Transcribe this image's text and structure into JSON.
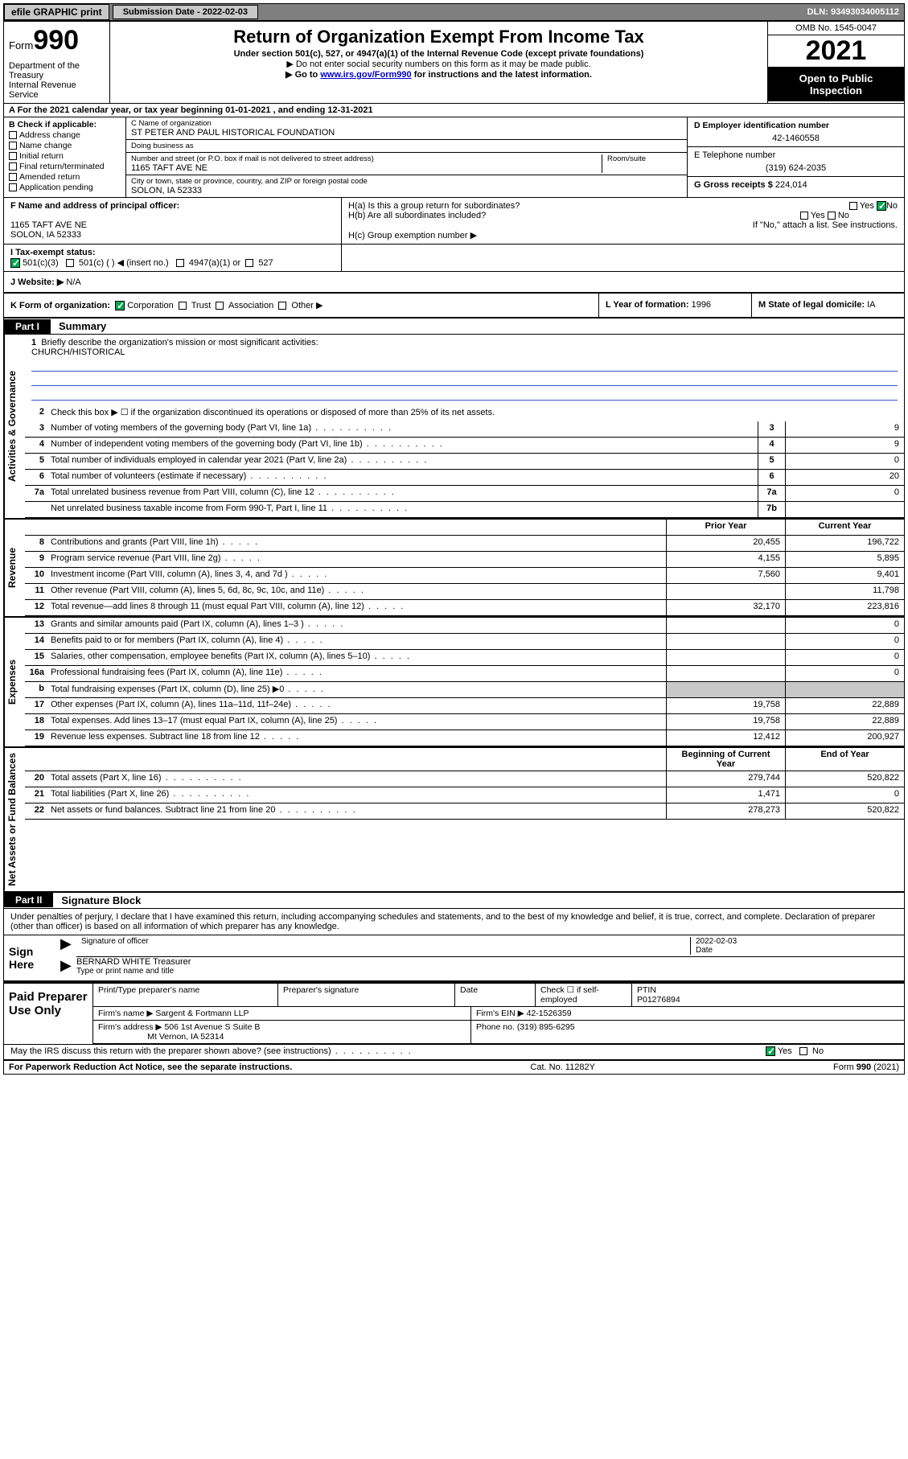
{
  "toolbar": {
    "efile_label": "efile GRAPHIC print",
    "submission_label": "Submission Date - 2022-02-03",
    "dln": "DLN: 93493034005112"
  },
  "header": {
    "form_word": "Form",
    "form_number": "990",
    "title": "Return of Organization Exempt From Income Tax",
    "subtitle": "Under section 501(c), 527, or 4947(a)(1) of the Internal Revenue Code (except private foundations)",
    "instr1": "▶ Do not enter social security numbers on this form as it may be made public.",
    "instr2_pre": "▶ Go to ",
    "instr2_link": "www.irs.gov/Form990",
    "instr2_post": " for instructions and the latest information.",
    "dept1": "Department of the Treasury",
    "dept2": "Internal Revenue Service",
    "omb": "OMB No. 1545-0047",
    "year": "2021",
    "open_pub1": "Open to Public",
    "open_pub2": "Inspection"
  },
  "row_a": "A For the 2021 calendar year, or tax year beginning 01-01-2021   , and ending 12-31-2021",
  "section_b": {
    "label": "B Check if applicable:",
    "items": [
      "Address change",
      "Name change",
      "Initial return",
      "Final return/terminated",
      "Amended return",
      "Application pending"
    ]
  },
  "section_c": {
    "name_label": "C Name of organization",
    "name": "ST PETER AND PAUL HISTORICAL FOUNDATION",
    "dba_label": "Doing business as",
    "dba": "",
    "addr_label": "Number and street (or P.O. box if mail is not delivered to street address)",
    "room_label": "Room/suite",
    "addr": "1165 TAFT AVE NE",
    "city_label": "City or town, state or province, country, and ZIP or foreign postal code",
    "city": "SOLON, IA  52333"
  },
  "section_d": {
    "ein_label": "D Employer identification number",
    "ein": "42-1460558",
    "phone_label": "E Telephone number",
    "phone": "(319) 624-2035",
    "gross_label": "G Gross receipts $",
    "gross": "224,014"
  },
  "section_f": {
    "label": "F  Name and address of principal officer:",
    "line1": "",
    "line2": "1165 TAFT AVE NE",
    "line3": "SOLON, IA  52333"
  },
  "section_h": {
    "ha": "H(a)  Is this a group return for subordinates?",
    "ha_yes": "Yes",
    "ha_no": "No",
    "hb": "H(b)  Are all subordinates included?",
    "hb_yes": "Yes",
    "hb_no": "No",
    "hb_note": "If \"No,\" attach a list. See instructions.",
    "hc": "H(c)  Group exemption number ▶"
  },
  "row_i": {
    "label": "I   Tax-exempt status:",
    "opt1": "501(c)(3)",
    "opt2": "501(c) (  ) ◀ (insert no.)",
    "opt3": "4947(a)(1) or",
    "opt4": "527"
  },
  "row_j": {
    "label": "J   Website: ▶",
    "val": "N/A"
  },
  "row_k": {
    "label": "K Form of organization:",
    "opts": [
      "Corporation",
      "Trust",
      "Association",
      "Other ▶"
    ],
    "l_label": "L Year of formation:",
    "l_val": "1996",
    "m_label": "M State of legal domicile:",
    "m_val": "IA"
  },
  "part1": {
    "tag": "Part I",
    "title": "Summary",
    "side_ag": "Activities & Governance",
    "side_rev": "Revenue",
    "side_exp": "Expenses",
    "side_net": "Net Assets or Fund Balances",
    "mission_label": "Briefly describe the organization's mission or most significant activities:",
    "mission": "CHURCH/HISTORICAL",
    "line2": "Check this box ▶ ☐  if the organization discontinued its operations or disposed of more than 25% of its net assets.",
    "col_py": "Prior Year",
    "col_cy": "Current Year",
    "col_beg": "Beginning of Current Year",
    "col_end": "End of Year",
    "rows_ag": [
      {
        "n": "3",
        "d": "Number of voting members of the governing body (Part VI, line 1a)",
        "b": "3",
        "v": "9"
      },
      {
        "n": "4",
        "d": "Number of independent voting members of the governing body (Part VI, line 1b)",
        "b": "4",
        "v": "9"
      },
      {
        "n": "5",
        "d": "Total number of individuals employed in calendar year 2021 (Part V, line 2a)",
        "b": "5",
        "v": "0"
      },
      {
        "n": "6",
        "d": "Total number of volunteers (estimate if necessary)",
        "b": "6",
        "v": "20"
      },
      {
        "n": "7a",
        "d": "Total unrelated business revenue from Part VIII, column (C), line 12",
        "b": "7a",
        "v": "0"
      },
      {
        "n": "",
        "d": "Net unrelated business taxable income from Form 990-T, Part I, line 11",
        "b": "7b",
        "v": ""
      }
    ],
    "rows_rev": [
      {
        "n": "8",
        "d": "Contributions and grants (Part VIII, line 1h)",
        "py": "20,455",
        "cy": "196,722"
      },
      {
        "n": "9",
        "d": "Program service revenue (Part VIII, line 2g)",
        "py": "4,155",
        "cy": "5,895"
      },
      {
        "n": "10",
        "d": "Investment income (Part VIII, column (A), lines 3, 4, and 7d )",
        "py": "7,560",
        "cy": "9,401"
      },
      {
        "n": "11",
        "d": "Other revenue (Part VIII, column (A), lines 5, 6d, 8c, 9c, 10c, and 11e)",
        "py": "",
        "cy": "11,798"
      },
      {
        "n": "12",
        "d": "Total revenue—add lines 8 through 11 (must equal Part VIII, column (A), line 12)",
        "py": "32,170",
        "cy": "223,816"
      }
    ],
    "rows_exp": [
      {
        "n": "13",
        "d": "Grants and similar amounts paid (Part IX, column (A), lines 1–3 )",
        "py": "",
        "cy": "0"
      },
      {
        "n": "14",
        "d": "Benefits paid to or for members (Part IX, column (A), line 4)",
        "py": "",
        "cy": "0"
      },
      {
        "n": "15",
        "d": "Salaries, other compensation, employee benefits (Part IX, column (A), lines 5–10)",
        "py": "",
        "cy": "0"
      },
      {
        "n": "16a",
        "d": "Professional fundraising fees (Part IX, column (A), line 11e)",
        "py": "",
        "cy": "0"
      },
      {
        "n": "b",
        "d": "Total fundraising expenses (Part IX, column (D), line 25) ▶0",
        "py": "shade",
        "cy": "shade"
      },
      {
        "n": "17",
        "d": "Other expenses (Part IX, column (A), lines 11a–11d, 11f–24e)",
        "py": "19,758",
        "cy": "22,889"
      },
      {
        "n": "18",
        "d": "Total expenses. Add lines 13–17 (must equal Part IX, column (A), line 25)",
        "py": "19,758",
        "cy": "22,889"
      },
      {
        "n": "19",
        "d": "Revenue less expenses. Subtract line 18 from line 12",
        "py": "12,412",
        "cy": "200,927"
      }
    ],
    "rows_net": [
      {
        "n": "20",
        "d": "Total assets (Part X, line 16)",
        "py": "279,744",
        "cy": "520,822"
      },
      {
        "n": "21",
        "d": "Total liabilities (Part X, line 26)",
        "py": "1,471",
        "cy": "0"
      },
      {
        "n": "22",
        "d": "Net assets or fund balances. Subtract line 21 from line 20",
        "py": "278,273",
        "cy": "520,822"
      }
    ]
  },
  "part2": {
    "tag": "Part II",
    "title": "Signature Block",
    "declaration": "Under penalties of perjury, I declare that I have examined this return, including accompanying schedules and statements, and to the best of my knowledge and belief, it is true, correct, and complete. Declaration of preparer (other than officer) is based on all information of which preparer has any knowledge.",
    "sign_here": "Sign Here",
    "sig_officer": "Signature of officer",
    "sig_date_label": "Date",
    "sig_date": "2022-02-03",
    "sig_name": "BERNARD WHITE Treasurer",
    "sig_name_label": "Type or print name and title",
    "paid": "Paid Preparer Use Only",
    "prep_name_label": "Print/Type preparer's name",
    "prep_sig_label": "Preparer's signature",
    "prep_date_label": "Date",
    "prep_check": "Check ☐ if self-employed",
    "ptin_label": "PTIN",
    "ptin": "P01276894",
    "firm_name_label": "Firm's name    ▶",
    "firm_name": "Sargent & Fortmann LLP",
    "firm_ein_label": "Firm's EIN ▶",
    "firm_ein": "42-1526359",
    "firm_addr_label": "Firm's address ▶",
    "firm_addr1": "506 1st Avenue S Suite B",
    "firm_addr2": "Mt Vernon, IA  52314",
    "firm_phone_label": "Phone no.",
    "firm_phone": "(319) 895-6295",
    "may_irs": "May the IRS discuss this return with the preparer shown above? (see instructions)",
    "may_yes": "Yes",
    "may_no": "No"
  },
  "footer": {
    "pra": "For Paperwork Reduction Act Notice, see the separate instructions.",
    "cat": "Cat. No. 11282Y",
    "form": "Form 990 (2021)"
  },
  "colors": {
    "toolbar_bg": "#7f7f7f",
    "btn_bg": "#c8c8c8",
    "link": "#0000cc",
    "rule": "#3355cc",
    "check_green": "#00aa55"
  }
}
